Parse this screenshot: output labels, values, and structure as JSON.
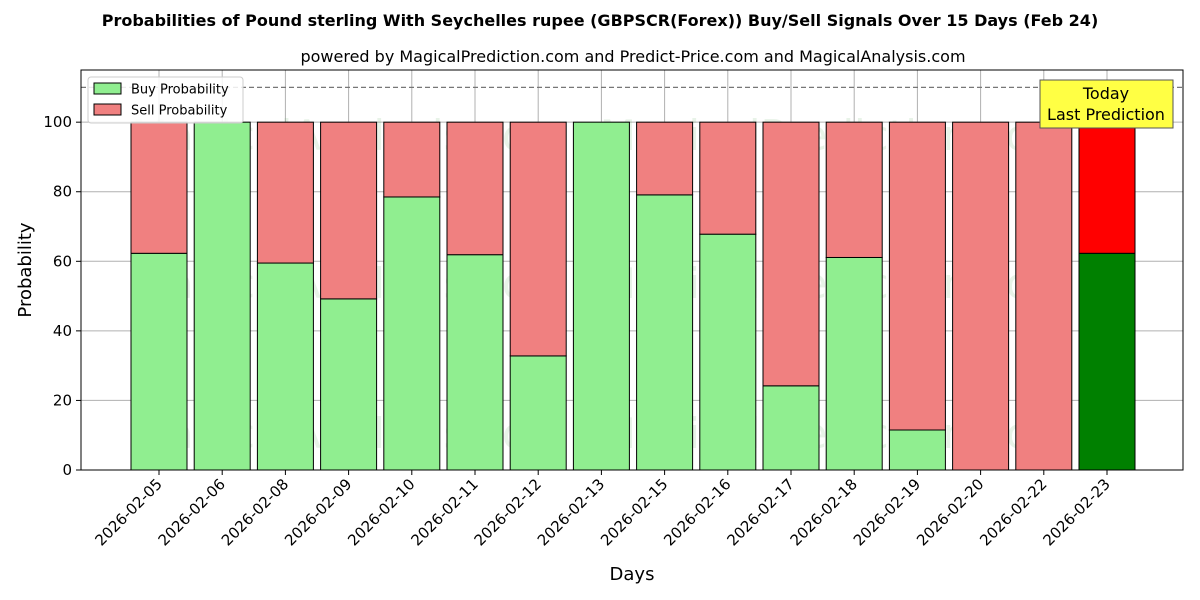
{
  "chart_data": {
    "type": "bar",
    "stacked": true,
    "title": "Probabilities of Pound sterling With Seychelles rupee (GBPSCR(Forex)) Buy/Sell Signals Over 15 Days (Feb 24)",
    "subtitle": "powered by MagicalPrediction.com and Predict-Price.com and MagicalAnalysis.com",
    "xlabel": "Days",
    "ylabel": "Probability",
    "ylim": [
      0,
      115
    ],
    "yticks": [
      0,
      20,
      40,
      60,
      80,
      100
    ],
    "grid": true,
    "legend_position": "top-left",
    "reference_line": 110,
    "categories": [
      "2026-02-05",
      "2026-02-06",
      "2026-02-08",
      "2026-02-09",
      "2026-02-10",
      "2026-02-11",
      "2026-02-12",
      "2026-02-13",
      "2026-02-15",
      "2026-02-16",
      "2026-02-17",
      "2026-02-18",
      "2026-02-19",
      "2026-02-20",
      "2026-02-22",
      "2026-02-23"
    ],
    "series": [
      {
        "name": "Buy Probability",
        "color": "#90ee90",
        "highlight_color": "#008000",
        "values": [
          62.3,
          100,
          59.5,
          49.2,
          78.5,
          61.9,
          32.8,
          100,
          79.1,
          67.8,
          24.2,
          61.1,
          11.5,
          0,
          0,
          62.3
        ]
      },
      {
        "name": "Sell Probability",
        "color": "#f08080",
        "highlight_color": "#ff0000",
        "values": [
          37.7,
          0,
          40.5,
          50.8,
          21.5,
          38.1,
          67.2,
          0,
          20.9,
          32.2,
          75.8,
          38.9,
          88.5,
          100,
          100,
          37.7
        ]
      }
    ],
    "highlight_index": 15,
    "annotation": {
      "lines": [
        "Today",
        "Last Prediction"
      ],
      "box_color": "#ffff44"
    },
    "watermarks": [
      "MagicalAnalysis.com",
      "MagicalPrediction.com"
    ]
  }
}
